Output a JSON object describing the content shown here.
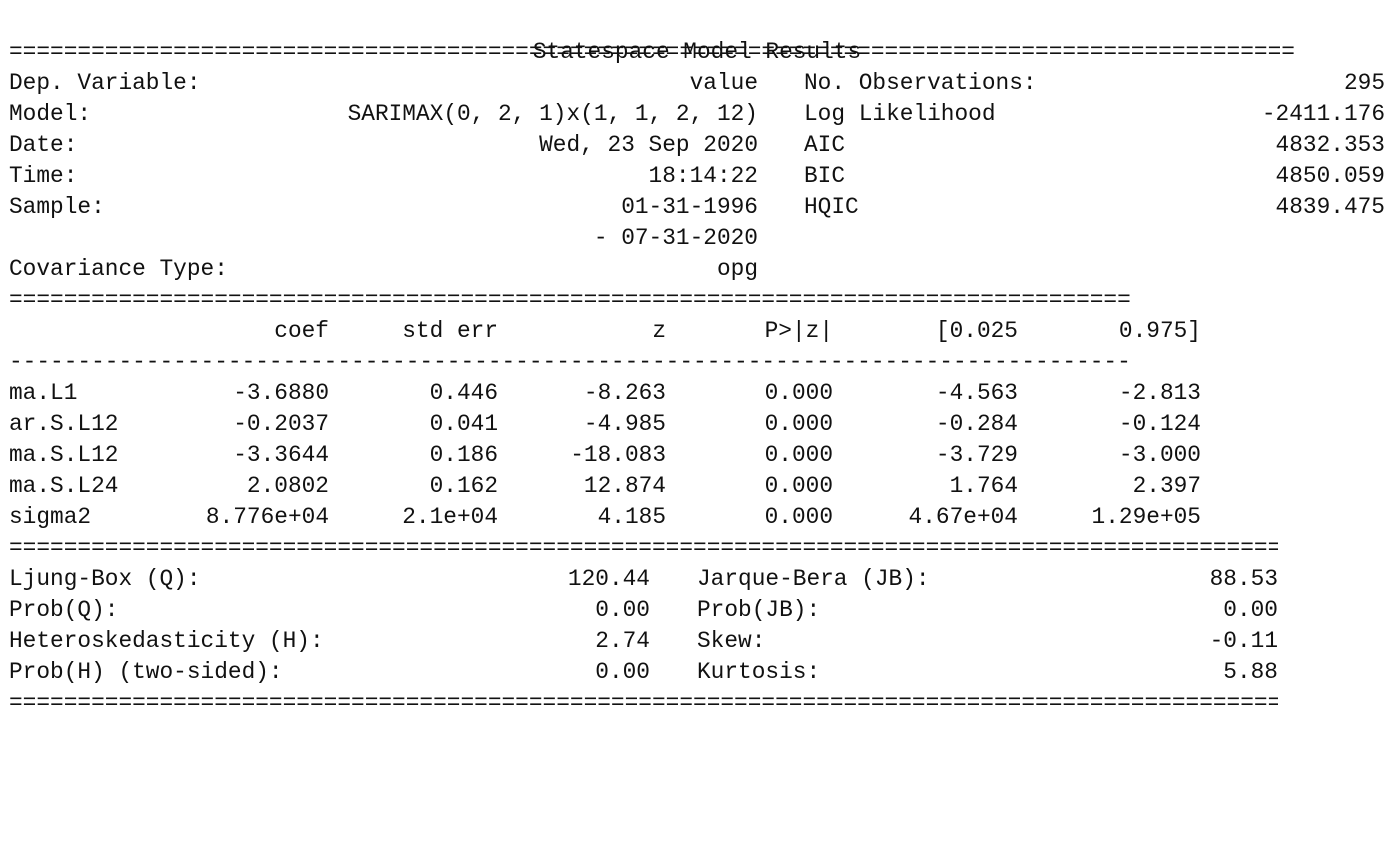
{
  "title": "Statespace Model Results",
  "rules": {
    "double_full": "==============================================================================================",
    "double_mid": "==================================================================================",
    "single_mid": "----------------------------------------------------------------------------------",
    "double_bottom": "============================================================================================="
  },
  "header": {
    "left": [
      {
        "label": "Dep. Variable:",
        "value": "value"
      },
      {
        "label": "Model:",
        "value": "SARIMAX(0, 2, 1)x(1, 1, 2, 12)"
      },
      {
        "label": "Date:",
        "value": "Wed, 23 Sep 2020"
      },
      {
        "label": "Time:",
        "value": "18:14:22"
      },
      {
        "label": "Sample:",
        "value": "01-31-1996"
      },
      {
        "label": "",
        "value": "- 07-31-2020"
      },
      {
        "label": "Covariance Type:",
        "value": "opg"
      }
    ],
    "right": [
      {
        "label": "No. Observations:",
        "value": "295"
      },
      {
        "label": "Log Likelihood",
        "value": "-2411.176"
      },
      {
        "label": "AIC",
        "value": "4832.353"
      },
      {
        "label": "BIC",
        "value": "4850.059"
      },
      {
        "label": "HQIC",
        "value": "4839.475"
      }
    ]
  },
  "coef_table": {
    "columns": [
      "",
      "coef",
      "std err",
      "z",
      "P>|z|",
      "[0.025",
      "0.975]"
    ],
    "rows": [
      [
        "ma.L1",
        "-3.6880",
        "0.446",
        "-8.263",
        "0.000",
        "-4.563",
        "-2.813"
      ],
      [
        "ar.S.L12",
        "-0.2037",
        "0.041",
        "-4.985",
        "0.000",
        "-0.284",
        "-0.124"
      ],
      [
        "ma.S.L12",
        "-3.3644",
        "0.186",
        "-18.083",
        "0.000",
        "-3.729",
        "-3.000"
      ],
      [
        "ma.S.L24",
        "2.0802",
        "0.162",
        "12.874",
        "0.000",
        "1.764",
        "2.397"
      ],
      [
        "sigma2",
        "8.776e+04",
        "2.1e+04",
        "4.185",
        "0.000",
        "4.67e+04",
        "1.29e+05"
      ]
    ]
  },
  "diagnostics": {
    "left": [
      {
        "label": "Ljung-Box (Q):",
        "value": "120.44"
      },
      {
        "label": "Prob(Q):",
        "value": "0.00"
      },
      {
        "label": "Heteroskedasticity (H):",
        "value": "2.74"
      },
      {
        "label": "Prob(H) (two-sided):",
        "value": "0.00"
      }
    ],
    "right": [
      {
        "label": "Jarque-Bera (JB):",
        "value": "88.53"
      },
      {
        "label": "Prob(JB):",
        "value": "0.00"
      },
      {
        "label": "Skew:",
        "value": "-0.11"
      },
      {
        "label": "Kurtosis:",
        "value": "5.88"
      }
    ]
  }
}
